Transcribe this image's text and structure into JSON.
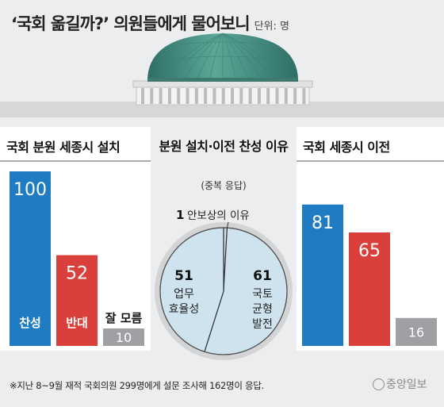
{
  "header": {
    "title": "‘국회 옮길까?’ 의원들에게 물어보니",
    "unit": "단위: 명"
  },
  "colors": {
    "blue": "#1f7cc2",
    "red": "#d9403b",
    "gray": "#9ea0a3",
    "pie_fill": "#cfe3ef",
    "pie_ring": "#d3d4d6",
    "background": "#ecedef",
    "dome": "#4e9a8c"
  },
  "chart_data": [
    {
      "type": "bar",
      "title": "국회 분원 세종시 설치",
      "categories": [
        "찬성",
        "반대",
        "잘 모름"
      ],
      "values": [
        100,
        52,
        10
      ],
      "colors": [
        "#1f7cc2",
        "#d9403b",
        "#9ea0a3"
      ]
    },
    {
      "type": "pie",
      "title": "분원 설치·이전 찬성 이유",
      "subtitle": "(중복 응답)",
      "slices": [
        {
          "label": "안보상의 이유",
          "value": 1
        },
        {
          "label": "국토 균형 발전",
          "value": 61
        },
        {
          "label": "업무 효율성",
          "value": 51
        }
      ],
      "label_lines": {
        "국토 균형 발전": [
          "국토",
          "균형",
          "발전"
        ],
        "업무 효율성": [
          "업무",
          "효율성"
        ]
      }
    },
    {
      "type": "bar",
      "title": "국회 세종시 이전",
      "values": [
        81,
        65,
        16
      ],
      "colors": [
        "#1f7cc2",
        "#d9403b",
        "#9ea0a3"
      ]
    }
  ],
  "footer": {
    "note": "※지난 8~9월 재적 국회의원 299명에게 설문 조사해 162명이 응답.",
    "logo": "중앙일보"
  }
}
